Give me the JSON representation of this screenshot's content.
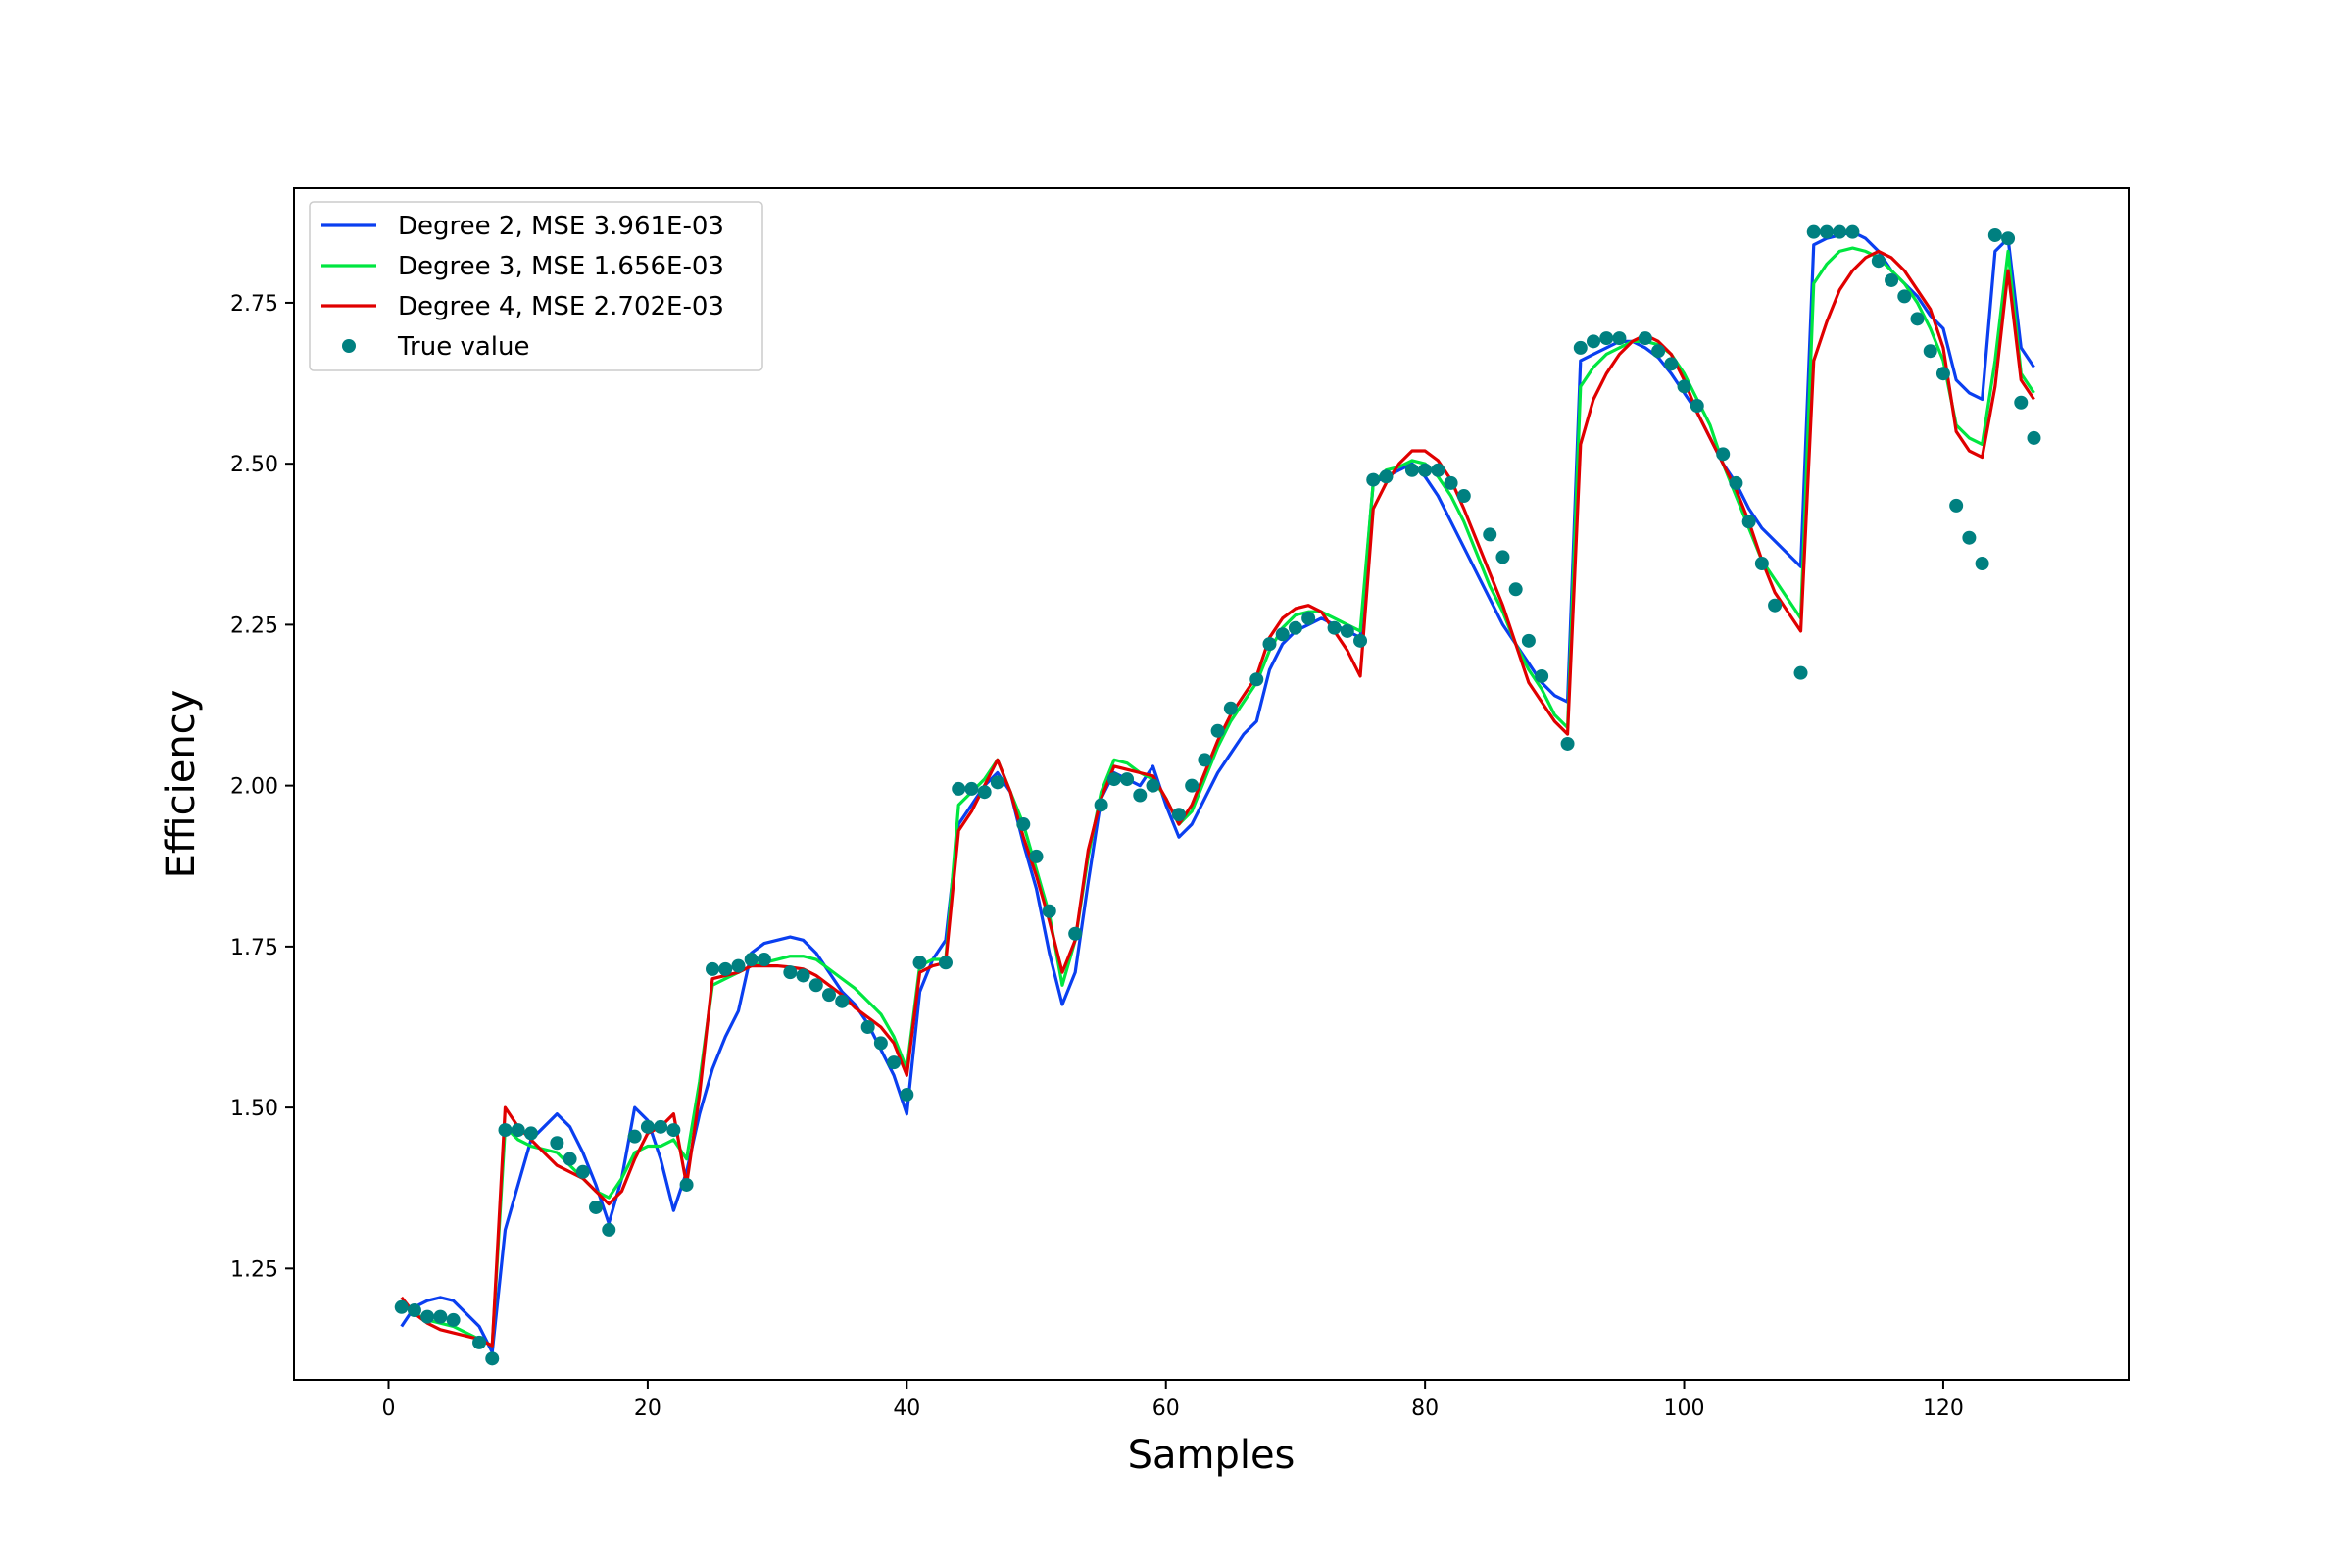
{
  "chart_data": {
    "type": "line",
    "title": "",
    "xlabel": "Samples",
    "ylabel": "Efficiency",
    "xlim": [
      -7.3,
      134.3
    ],
    "ylim": [
      1.077,
      2.928
    ],
    "xticks": [
      0,
      20,
      40,
      60,
      80,
      100,
      120
    ],
    "yticks": [
      1.25,
      1.5,
      1.75,
      2.0,
      2.25,
      2.5,
      2.75
    ],
    "xtick_labels": [
      "0",
      "20",
      "40",
      "60",
      "80",
      "100",
      "120"
    ],
    "ytick_labels": [
      "1.25",
      "1.50",
      "1.75",
      "2.00",
      "2.25",
      "2.50",
      "2.75"
    ],
    "grid": false,
    "legend_position": "upper-left",
    "x": [
      1,
      2,
      3,
      4,
      5,
      6,
      7,
      8,
      9,
      10,
      11,
      12,
      13,
      14,
      15,
      16,
      17,
      18,
      19,
      20,
      21,
      22,
      23,
      24,
      25,
      26,
      27,
      28,
      29,
      30,
      31,
      32,
      33,
      34,
      35,
      36,
      37,
      38,
      39,
      40,
      41,
      42,
      43,
      44,
      45,
      46,
      47,
      48,
      49,
      50,
      51,
      52,
      53,
      54,
      55,
      56,
      57,
      58,
      59,
      60,
      61,
      62,
      63,
      64,
      65,
      66,
      67,
      68,
      69,
      70,
      71,
      72,
      73,
      74,
      75,
      76,
      77,
      78,
      79,
      80,
      81,
      82,
      83,
      84,
      85,
      86,
      87,
      88,
      89,
      90,
      91,
      92,
      93,
      94,
      95,
      96,
      97,
      98,
      99,
      100,
      101,
      102,
      103,
      104,
      105,
      106,
      107,
      108,
      109,
      110,
      111,
      112,
      113,
      114,
      115,
      116,
      117,
      118,
      119,
      120,
      121,
      122,
      123,
      124,
      125,
      126,
      127
    ],
    "series": [
      {
        "name": "Degree 2, MSE 3.961E-03",
        "kind": "line",
        "color": "#0a3ff0",
        "values": [
          1.16,
          1.19,
          1.2,
          1.205,
          1.2,
          1.18,
          1.16,
          1.12,
          1.31,
          1.38,
          1.45,
          1.47,
          1.49,
          1.47,
          1.43,
          1.38,
          1.32,
          1.39,
          1.5,
          1.48,
          1.42,
          1.34,
          1.4,
          1.49,
          1.56,
          1.61,
          1.65,
          1.74,
          1.755,
          1.76,
          1.765,
          1.76,
          1.74,
          1.71,
          1.68,
          1.66,
          1.63,
          1.59,
          1.55,
          1.49,
          1.68,
          1.73,
          1.76,
          1.94,
          1.97,
          2.0,
          2.02,
          1.99,
          1.91,
          1.84,
          1.74,
          1.66,
          1.71,
          1.85,
          1.98,
          2.02,
          2.01,
          2.0,
          2.03,
          1.97,
          1.92,
          1.94,
          1.98,
          2.02,
          2.05,
          2.08,
          2.1,
          2.18,
          2.22,
          2.24,
          2.25,
          2.26,
          2.25,
          2.24,
          2.23,
          2.47,
          2.48,
          2.49,
          2.5,
          2.48,
          2.45,
          2.41,
          2.37,
          2.33,
          2.29,
          2.25,
          2.22,
          2.19,
          2.16,
          2.14,
          2.13,
          2.66,
          2.67,
          2.68,
          2.69,
          2.69,
          2.68,
          2.665,
          2.64,
          2.61,
          2.58,
          2.54,
          2.5,
          2.47,
          2.43,
          2.4,
          2.38,
          2.36,
          2.34,
          2.84,
          2.85,
          2.855,
          2.86,
          2.85,
          2.83,
          2.8,
          2.78,
          2.76,
          2.73,
          2.71,
          2.63,
          2.61,
          2.6,
          2.83,
          2.85,
          2.68,
          2.65
        ]
      },
      {
        "name": "Degree 3, MSE 1.656E-03",
        "kind": "line",
        "color": "#00e640",
        "values": [
          1.2,
          1.18,
          1.17,
          1.165,
          1.16,
          1.15,
          1.14,
          1.13,
          1.47,
          1.45,
          1.44,
          1.435,
          1.43,
          1.41,
          1.39,
          1.37,
          1.36,
          1.39,
          1.43,
          1.44,
          1.44,
          1.45,
          1.42,
          1.54,
          1.69,
          1.7,
          1.71,
          1.72,
          1.725,
          1.73,
          1.735,
          1.735,
          1.73,
          1.715,
          1.7,
          1.685,
          1.665,
          1.645,
          1.61,
          1.56,
          1.72,
          1.73,
          1.73,
          1.97,
          1.99,
          2.01,
          2.04,
          1.99,
          1.94,
          1.87,
          1.8,
          1.69,
          1.76,
          1.89,
          1.99,
          2.04,
          2.035,
          2.02,
          2.01,
          1.98,
          1.94,
          1.96,
          2.01,
          2.06,
          2.1,
          2.13,
          2.16,
          2.21,
          2.245,
          2.265,
          2.27,
          2.27,
          2.26,
          2.25,
          2.24,
          2.47,
          2.49,
          2.495,
          2.505,
          2.5,
          2.48,
          2.45,
          2.41,
          2.36,
          2.31,
          2.27,
          2.22,
          2.18,
          2.15,
          2.11,
          2.09,
          2.62,
          2.65,
          2.67,
          2.68,
          2.69,
          2.69,
          2.685,
          2.67,
          2.64,
          2.6,
          2.56,
          2.5,
          2.45,
          2.4,
          2.35,
          2.32,
          2.29,
          2.26,
          2.78,
          2.81,
          2.83,
          2.835,
          2.83,
          2.82,
          2.8,
          2.78,
          2.75,
          2.71,
          2.66,
          2.56,
          2.54,
          2.53,
          2.66,
          2.83,
          2.64,
          2.61
        ]
      },
      {
        "name": "Degree 4, MSE 2.702E-03",
        "kind": "line",
        "color": "#e00000",
        "values": [
          1.205,
          1.18,
          1.165,
          1.155,
          1.15,
          1.145,
          1.14,
          1.13,
          1.5,
          1.47,
          1.45,
          1.43,
          1.41,
          1.4,
          1.39,
          1.37,
          1.35,
          1.37,
          1.42,
          1.46,
          1.47,
          1.49,
          1.38,
          1.52,
          1.7,
          1.705,
          1.71,
          1.72,
          1.72,
          1.72,
          1.718,
          1.715,
          1.705,
          1.69,
          1.675,
          1.655,
          1.64,
          1.625,
          1.6,
          1.55,
          1.71,
          1.72,
          1.725,
          1.93,
          1.96,
          2.0,
          2.04,
          1.99,
          1.92,
          1.86,
          1.79,
          1.71,
          1.76,
          1.9,
          1.98,
          2.03,
          2.025,
          2.02,
          2.015,
          1.98,
          1.94,
          1.97,
          2.02,
          2.07,
          2.11,
          2.14,
          2.17,
          2.23,
          2.26,
          2.275,
          2.28,
          2.27,
          2.24,
          2.21,
          2.17,
          2.43,
          2.47,
          2.5,
          2.52,
          2.52,
          2.505,
          2.475,
          2.43,
          2.38,
          2.33,
          2.28,
          2.22,
          2.16,
          2.13,
          2.1,
          2.08,
          2.53,
          2.6,
          2.64,
          2.67,
          2.69,
          2.7,
          2.69,
          2.67,
          2.63,
          2.58,
          2.54,
          2.5,
          2.46,
          2.41,
          2.35,
          2.3,
          2.27,
          2.24,
          2.66,
          2.72,
          2.77,
          2.8,
          2.82,
          2.83,
          2.82,
          2.8,
          2.77,
          2.74,
          2.68,
          2.55,
          2.52,
          2.51,
          2.62,
          2.8,
          2.63,
          2.6
        ]
      },
      {
        "name": "True value",
        "kind": "scatter",
        "color": "#008080",
        "values": [
          1.19,
          1.185,
          1.175,
          1.175,
          1.17,
          null,
          1.135,
          1.11,
          1.465,
          1.465,
          1.46,
          null,
          1.445,
          1.42,
          1.4,
          1.345,
          1.31,
          null,
          1.455,
          1.47,
          1.47,
          1.465,
          1.38,
          null,
          1.715,
          1.715,
          1.72,
          1.73,
          1.73,
          null,
          1.71,
          1.705,
          1.69,
          1.675,
          1.665,
          null,
          1.625,
          1.6,
          1.57,
          1.52,
          1.725,
          null,
          1.725,
          1.995,
          1.995,
          1.99,
          2.005,
          null,
          1.94,
          1.89,
          1.805,
          null,
          1.77,
          null,
          1.97,
          2.01,
          2.01,
          1.985,
          2.0,
          null,
          1.955,
          2.0,
          2.04,
          2.085,
          2.12,
          null,
          2.165,
          2.22,
          2.235,
          2.245,
          2.26,
          null,
          2.245,
          2.24,
          2.225,
          2.475,
          2.48,
          null,
          2.49,
          2.49,
          2.49,
          2.47,
          2.45,
          null,
          2.39,
          2.355,
          2.305,
          2.225,
          2.17,
          null,
          2.065,
          2.68,
          2.69,
          2.695,
          2.695,
          null,
          2.695,
          2.675,
          2.655,
          2.62,
          2.59,
          null,
          2.515,
          2.47,
          2.41,
          2.345,
          2.28,
          null,
          2.175,
          2.86,
          2.86,
          2.86,
          2.86,
          null,
          2.815,
          2.785,
          2.76,
          2.725,
          2.675,
          2.64,
          2.435,
          2.385,
          2.345,
          2.855,
          2.85,
          2.595,
          2.54
        ]
      }
    ]
  }
}
